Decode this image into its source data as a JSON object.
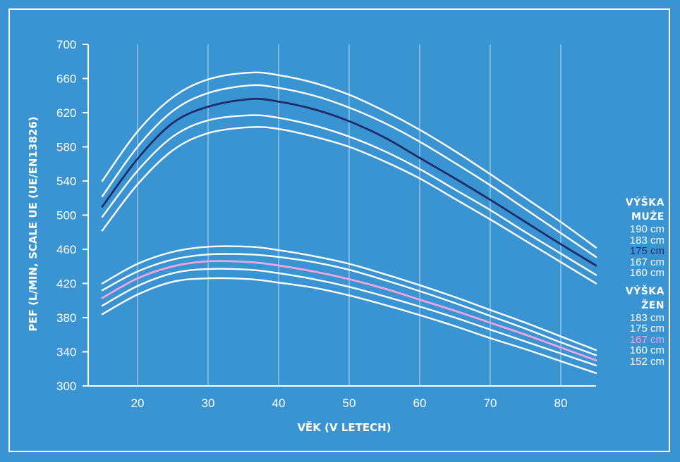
{
  "chart_data": {
    "type": "line",
    "xlabel": "VĚK (V LETECH)",
    "ylabel": "PEF (L/MIN, SCALE UE (UE/EN13826)",
    "xlim": [
      13,
      85
    ],
    "ylim": [
      300,
      700
    ],
    "x_ticks": [
      "20",
      "30",
      "40",
      "50",
      "60",
      "70",
      "80"
    ],
    "y_ticks": [
      "300",
      "340",
      "380",
      "420",
      "460",
      "500",
      "540",
      "580",
      "620",
      "660",
      "700"
    ],
    "grid": "vertical",
    "x": [
      15,
      20,
      25,
      30,
      36,
      40,
      45,
      50,
      55,
      60,
      65,
      70,
      75,
      80,
      85
    ],
    "series": [
      {
        "name": "190 cm",
        "group": "men",
        "color": "#ffffff",
        "values": [
          540,
          598,
          638,
          659,
          667,
          664,
          655,
          641,
          622,
          600,
          575,
          548,
          520,
          492,
          462
        ]
      },
      {
        "name": "183 cm",
        "group": "men",
        "color": "#ffffff",
        "values": [
          522,
          580,
          622,
          643,
          652,
          649,
          640,
          626,
          608,
          586,
          561,
          535,
          507,
          479,
          451
        ]
      },
      {
        "name": "175 cm",
        "group": "men",
        "color": "#1f2c6b",
        "highlight": true,
        "values": [
          510,
          566,
          608,
          627,
          636,
          633,
          624,
          610,
          591,
          567,
          543,
          518,
          492,
          466,
          441
        ]
      },
      {
        "name": "167 cm",
        "group": "men",
        "color": "#ffffff",
        "values": [
          498,
          552,
          592,
          611,
          617,
          614,
          605,
          592,
          575,
          554,
          530,
          506,
          480,
          455,
          430
        ]
      },
      {
        "name": "160 cm",
        "group": "men",
        "color": "#ffffff",
        "values": [
          482,
          536,
          576,
          596,
          603,
          601,
          592,
          580,
          563,
          543,
          519,
          495,
          470,
          445,
          420
        ]
      },
      {
        "name": "183 cm",
        "group": "women",
        "color": "#ffffff",
        "values": [
          420,
          443,
          457,
          463,
          463,
          459,
          452,
          443,
          431,
          418,
          404,
          389,
          374,
          358,
          342
        ]
      },
      {
        "name": "175 cm",
        "group": "women",
        "color": "#ffffff",
        "values": [
          412,
          434,
          448,
          454,
          454,
          451,
          445,
          436,
          424,
          411,
          397,
          382,
          367,
          351,
          336
        ]
      },
      {
        "name": "167 cm",
        "group": "women",
        "color": "#f0a3e0",
        "highlight": true,
        "values": [
          403,
          426,
          440,
          446,
          445,
          441,
          434,
          425,
          414,
          401,
          388,
          374,
          360,
          345,
          330
        ]
      },
      {
        "name": "160 cm",
        "group": "women",
        "color": "#ffffff",
        "values": [
          394,
          417,
          432,
          437,
          436,
          432,
          425,
          416,
          405,
          393,
          380,
          366,
          352,
          338,
          324
        ]
      },
      {
        "name": "152 cm",
        "group": "women",
        "color": "#ffffff",
        "values": [
          384,
          407,
          422,
          426,
          425,
          421,
          415,
          406,
          395,
          383,
          370,
          356,
          343,
          329,
          315
        ]
      }
    ]
  },
  "legend": {
    "men": {
      "heading_line1": "VÝŠKA",
      "heading_line2": "MUŽE",
      "items": [
        {
          "label": "190 cm",
          "color": "#ffffff"
        },
        {
          "label": "183 cm",
          "color": "#ffffff"
        },
        {
          "label": "175 cm",
          "color": "#1f2c6b"
        },
        {
          "label": "167 cm",
          "color": "#ffffff"
        },
        {
          "label": "160 cm",
          "color": "#ffffff"
        }
      ]
    },
    "women": {
      "heading_line1": "VÝŠKA",
      "heading_line2": "ŽEN",
      "items": [
        {
          "label": "183 cm",
          "color": "#ffffff"
        },
        {
          "label": "175 cm",
          "color": "#ffffff"
        },
        {
          "label": "167 cm",
          "color": "#f0a3e0"
        },
        {
          "label": "160 cm",
          "color": "#ffffff"
        },
        {
          "label": "152 cm",
          "color": "#ffffff"
        }
      ]
    }
  },
  "colors": {
    "background": "#3a94d2",
    "foreground": "#ffffff",
    "grid": "#a8cde8",
    "men_highlight": "#1f2c6b",
    "women_highlight": "#f0a3e0"
  }
}
